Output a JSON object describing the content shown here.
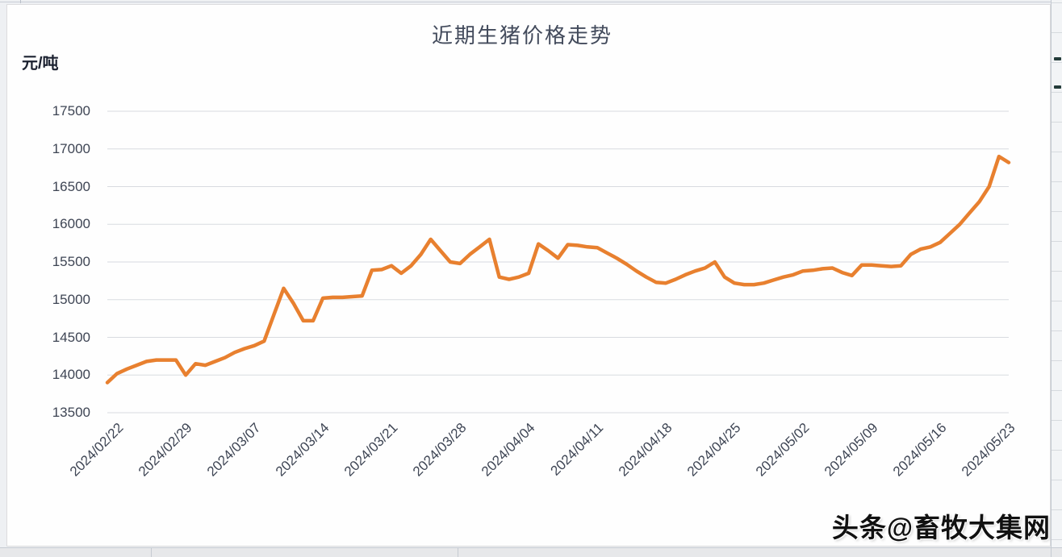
{
  "page": {
    "watermark": "头条@畜牧大集网"
  },
  "chart_data": {
    "type": "line",
    "title": "近期生猪价格走势",
    "xlabel": "",
    "ylabel": "元/吨",
    "ylim": [
      13500,
      17500
    ],
    "grid": true,
    "legend": false,
    "series_color": "#E8802F",
    "yticks": [
      17500,
      17000,
      16500,
      16000,
      15500,
      15000,
      14500,
      14000,
      13500
    ],
    "xticks": [
      "2024/02/22",
      "2024/02/29",
      "2024/03/07",
      "2024/03/14",
      "2024/03/21",
      "2024/03/28",
      "2024/04/04",
      "2024/04/11",
      "2024/04/18",
      "2024/04/25",
      "2024/05/02",
      "2024/05/09",
      "2024/05/16",
      "2024/05/23"
    ],
    "x": [
      "2024/02/22",
      "2024/02/23",
      "2024/02/24",
      "2024/02/25",
      "2024/02/26",
      "2024/02/27",
      "2024/02/28",
      "2024/02/29",
      "2024/03/01",
      "2024/03/02",
      "2024/03/03",
      "2024/03/04",
      "2024/03/05",
      "2024/03/06",
      "2024/03/07",
      "2024/03/08",
      "2024/03/09",
      "2024/03/10",
      "2024/03/11",
      "2024/03/12",
      "2024/03/13",
      "2024/03/14",
      "2024/03/15",
      "2024/03/16",
      "2024/03/17",
      "2024/03/18",
      "2024/03/19",
      "2024/03/20",
      "2024/03/21",
      "2024/03/22",
      "2024/03/23",
      "2024/03/24",
      "2024/03/25",
      "2024/03/26",
      "2024/03/27",
      "2024/03/28",
      "2024/03/29",
      "2024/03/30",
      "2024/03/31",
      "2024/04/01",
      "2024/04/02",
      "2024/04/03",
      "2024/04/04",
      "2024/04/05",
      "2024/04/06",
      "2024/04/07",
      "2024/04/08",
      "2024/04/09",
      "2024/04/10",
      "2024/04/11",
      "2024/04/12",
      "2024/04/13",
      "2024/04/14",
      "2024/04/15",
      "2024/04/16",
      "2024/04/17",
      "2024/04/18",
      "2024/04/19",
      "2024/04/20",
      "2024/04/21",
      "2024/04/22",
      "2024/04/23",
      "2024/04/24",
      "2024/04/25",
      "2024/04/26",
      "2024/04/27",
      "2024/04/28",
      "2024/04/29",
      "2024/04/30",
      "2024/05/01",
      "2024/05/02",
      "2024/05/03",
      "2024/05/04",
      "2024/05/05",
      "2024/05/06",
      "2024/05/07",
      "2024/05/08",
      "2024/05/09",
      "2024/05/10",
      "2024/05/11",
      "2024/05/12",
      "2024/05/13",
      "2024/05/14",
      "2024/05/15",
      "2024/05/16",
      "2024/05/17",
      "2024/05/18",
      "2024/05/19",
      "2024/05/20",
      "2024/05/21",
      "2024/05/22",
      "2024/05/23",
      "2024/05/24"
    ],
    "values": [
      13900,
      14020,
      14080,
      14130,
      14180,
      14200,
      14200,
      14200,
      14000,
      14150,
      14130,
      14180,
      14230,
      14300,
      14350,
      14390,
      14450,
      14800,
      15150,
      14950,
      14720,
      14720,
      15020,
      15030,
      15030,
      15040,
      15050,
      15390,
      15400,
      15450,
      15350,
      15450,
      15600,
      15800,
      15650,
      15500,
      15480,
      15600,
      15700,
      15800,
      15300,
      15270,
      15300,
      15350,
      15740,
      15650,
      15550,
      15730,
      15720,
      15700,
      15690,
      15620,
      15550,
      15470,
      15380,
      15300,
      15230,
      15220,
      15270,
      15330,
      15380,
      15420,
      15500,
      15300,
      15220,
      15200,
      15200,
      15220,
      15260,
      15300,
      15330,
      15380,
      15390,
      15410,
      15420,
      15360,
      15320,
      15460,
      15460,
      15450,
      15440,
      15450,
      15600,
      15670,
      15700,
      15760,
      15880,
      16000,
      16150,
      16300,
      16500,
      16900,
      16820
    ]
  }
}
